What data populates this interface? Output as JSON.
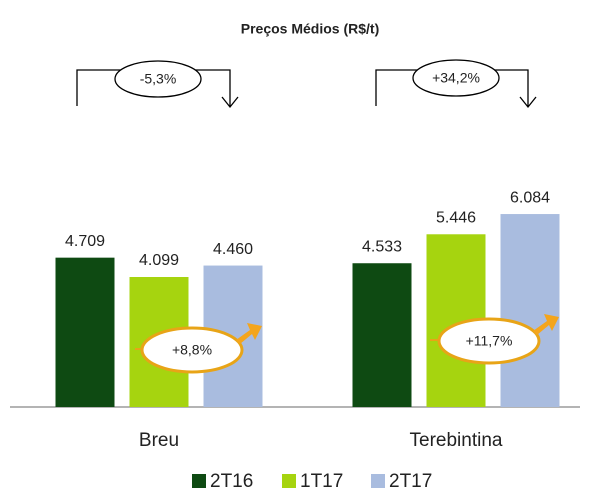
{
  "chart_data": {
    "type": "bar",
    "title": "Preços Médios (R$/t)",
    "categories": [
      "Breu",
      "Terebintina"
    ],
    "series": [
      {
        "name": "2T16",
        "color": "#0e4a12",
        "values": [
          4709,
          4533
        ],
        "value_labels": [
          "4.709",
          "4.533"
        ]
      },
      {
        "name": "1T17",
        "color": "#a6d40f",
        "values": [
          4099,
          5446
        ],
        "value_labels": [
          "4.099",
          "5.446"
        ]
      },
      {
        "name": "2T17",
        "color": "#a9bcdf",
        "values": [
          4460,
          6084
        ],
        "value_labels": [
          "4.460",
          "6.084"
        ]
      }
    ],
    "ylim": [
      0,
      7000
    ],
    "annotations": [
      "-5,3%",
      "+34,2%",
      "+8,8%",
      "+11,7%"
    ]
  }
}
